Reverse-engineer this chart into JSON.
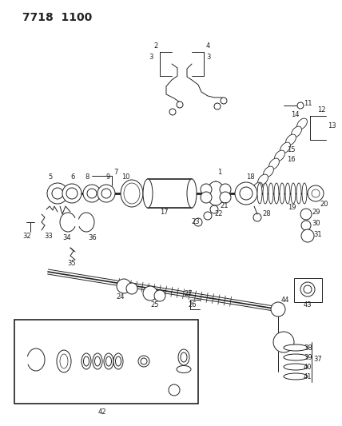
{
  "title": "7718  1100",
  "bg_color": "#ffffff",
  "lc": "#222222",
  "figsize": [
    4.28,
    5.33
  ],
  "dpi": 100
}
